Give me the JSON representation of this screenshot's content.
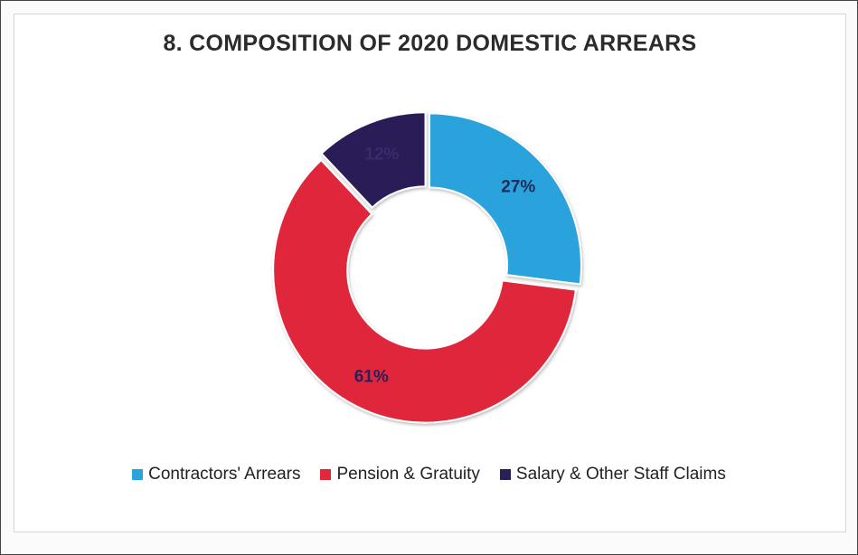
{
  "chart_data": {
    "type": "pie",
    "variant": "donut",
    "title": "8. COMPOSITION OF 2020 DOMESTIC ARREARS",
    "categories": [
      "Contractors' Arrears",
      "Pension & Gratuity",
      "Salary & Other Staff Claims"
    ],
    "values": [
      27,
      61,
      12
    ],
    "labels": [
      "27%",
      "61%",
      "12%"
    ],
    "colors": [
      "#2aa3dc",
      "#e0283a",
      "#2b1f57"
    ],
    "legend_position": "bottom"
  }
}
